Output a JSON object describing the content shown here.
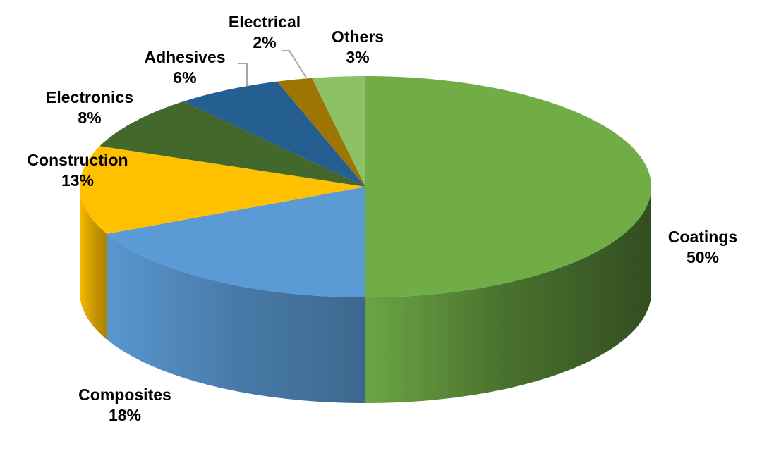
{
  "chart_data": {
    "type": "pie",
    "style": "3d",
    "start": "12 o'clock, clockwise",
    "slices": [
      {
        "label": "Coatings",
        "value": 50,
        "text": "50%",
        "color": "#70AD47",
        "label_color": "#548235"
      },
      {
        "label": "Composites",
        "value": 18,
        "text": "18%",
        "color": "#5B9BD5",
        "label_color": "#1F2F6E"
      },
      {
        "label": "Construction",
        "value": 13,
        "text": "13%",
        "color": "#FFC000",
        "label_color": "#E0401A"
      },
      {
        "label": "Electronics",
        "value": 8,
        "text": "8%",
        "color": "#43682B",
        "label_color": "#3A5E24"
      },
      {
        "label": "Adhesives",
        "value": 6,
        "text": "6%",
        "color": "#255E91",
        "label_color": "#2E64A0"
      },
      {
        "label": "Electrical",
        "value": 2,
        "text": "2%",
        "color": "#9E7403",
        "label_color": "#A07406"
      },
      {
        "label": "Others",
        "value": 3,
        "text": "3%",
        "color": "#8CC168",
        "label_color": "#5E9638"
      }
    ]
  }
}
